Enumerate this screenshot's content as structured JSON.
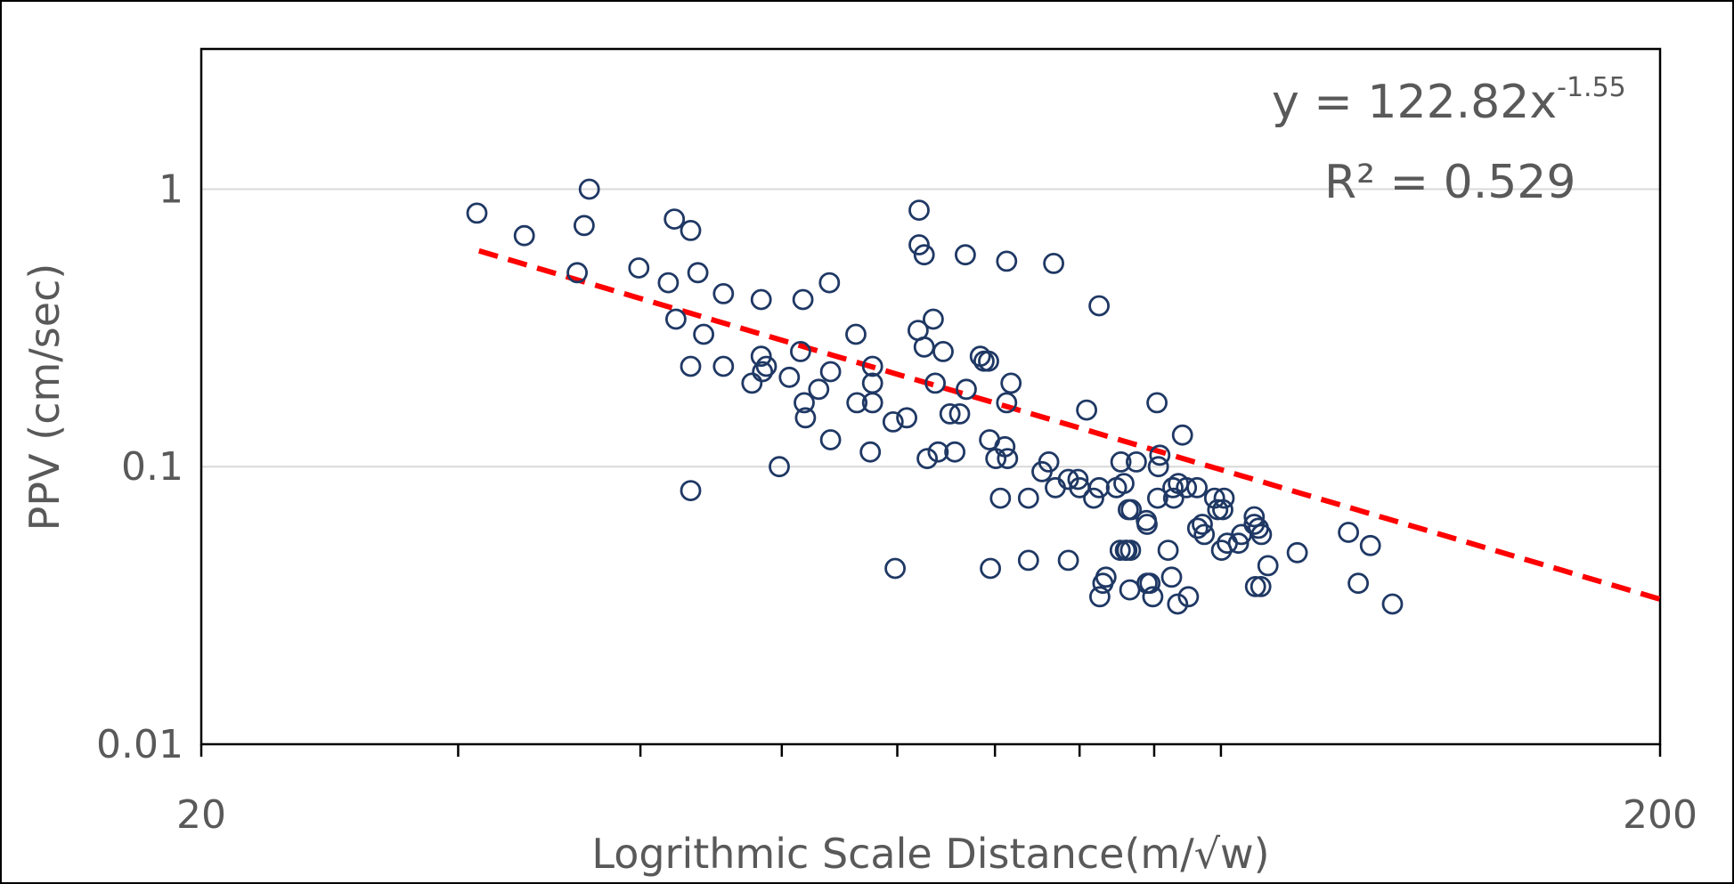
{
  "chart_data": {
    "type": "scatter",
    "xlabel": "Logrithmic Scale Distance(m/√w)",
    "ylabel": "PPV (cm/sec)",
    "x_scale": "log",
    "y_scale": "log",
    "xlim": [
      20,
      200
    ],
    "ylim": [
      0.01,
      3.2
    ],
    "x_tick_labels": [
      "20",
      "200"
    ],
    "y_ticks": [
      0.01,
      0.1,
      1
    ],
    "y_tick_labels": [
      "0.01",
      "0.1",
      "1"
    ],
    "grid": "horizontal",
    "marker_color": "#1f3864",
    "trendline": {
      "type": "power",
      "coefficient": 122.82,
      "exponent": -1.55,
      "x_range": [
        31,
        200
      ],
      "color": "#ff0000",
      "equation_base": "y = 122.82x",
      "equation_exponent": "-1.55",
      "r2_label": "R² = 0.529"
    },
    "points": [
      [
        30.9,
        0.82
      ],
      [
        33.3,
        0.68
      ],
      [
        36.2,
        0.5
      ],
      [
        36.6,
        0.74
      ],
      [
        36.9,
        1.0
      ],
      [
        39.9,
        0.52
      ],
      [
        41.8,
        0.46
      ],
      [
        42.2,
        0.78
      ],
      [
        42.3,
        0.34
      ],
      [
        43.3,
        0.71
      ],
      [
        43.3,
        0.23
      ],
      [
        43.3,
        0.082
      ],
      [
        43.8,
        0.5
      ],
      [
        44.2,
        0.3
      ],
      [
        45.6,
        0.42
      ],
      [
        45.6,
        0.23
      ],
      [
        47.7,
        0.2
      ],
      [
        48.4,
        0.4
      ],
      [
        48.4,
        0.25
      ],
      [
        48.5,
        0.22
      ],
      [
        48.8,
        0.23
      ],
      [
        49.8,
        0.1
      ],
      [
        50.6,
        0.21
      ],
      [
        51.5,
        0.26
      ],
      [
        51.7,
        0.4
      ],
      [
        51.8,
        0.17
      ],
      [
        51.9,
        0.15
      ],
      [
        53.0,
        0.19
      ],
      [
        53.9,
        0.46
      ],
      [
        54.0,
        0.22
      ],
      [
        54.0,
        0.125
      ],
      [
        56.2,
        0.3
      ],
      [
        56.3,
        0.17
      ],
      [
        57.5,
        0.113
      ],
      [
        57.7,
        0.23
      ],
      [
        57.7,
        0.2
      ],
      [
        57.7,
        0.17
      ],
      [
        59.6,
        0.145
      ],
      [
        59.8,
        0.043
      ],
      [
        60.9,
        0.15
      ],
      [
        62.0,
        0.31
      ],
      [
        62.1,
        0.84
      ],
      [
        62.1,
        0.63
      ],
      [
        62.6,
        0.58
      ],
      [
        62.6,
        0.27
      ],
      [
        62.9,
        0.107
      ],
      [
        63.5,
        0.34
      ],
      [
        63.7,
        0.2
      ],
      [
        64.0,
        0.113
      ],
      [
        64.5,
        0.26
      ],
      [
        65.2,
        0.155
      ],
      [
        65.7,
        0.113
      ],
      [
        66.2,
        0.155
      ],
      [
        66.8,
        0.58
      ],
      [
        66.9,
        0.19
      ],
      [
        68.4,
        0.25
      ],
      [
        68.8,
        0.24
      ],
      [
        69.3,
        0.24
      ],
      [
        69.4,
        0.125
      ],
      [
        69.5,
        0.043
      ],
      [
        70.1,
        0.107
      ],
      [
        70.6,
        0.077
      ],
      [
        71.1,
        0.118
      ],
      [
        71.3,
        0.55
      ],
      [
        71.3,
        0.17
      ],
      [
        71.4,
        0.107
      ],
      [
        71.8,
        0.2
      ],
      [
        73.8,
        0.077
      ],
      [
        73.8,
        0.046
      ],
      [
        75.4,
        0.096
      ],
      [
        76.2,
        0.104
      ],
      [
        76.8,
        0.54
      ],
      [
        77.0,
        0.084
      ],
      [
        78.6,
        0.046
      ],
      [
        78.6,
        0.09
      ],
      [
        79.8,
        0.09
      ],
      [
        80.0,
        0.084
      ],
      [
        80.9,
        0.16
      ],
      [
        81.8,
        0.077
      ],
      [
        82.5,
        0.084
      ],
      [
        82.5,
        0.38
      ],
      [
        82.6,
        0.034
      ],
      [
        83.0,
        0.038
      ],
      [
        83.4,
        0.04
      ],
      [
        84.8,
        0.084
      ],
      [
        85.3,
        0.05
      ],
      [
        85.4,
        0.104
      ],
      [
        85.8,
        0.087
      ],
      [
        86.0,
        0.05
      ],
      [
        86.2,
        0.05
      ],
      [
        86.4,
        0.07
      ],
      [
        86.6,
        0.036
      ],
      [
        86.7,
        0.05
      ],
      [
        86.8,
        0.07
      ],
      [
        87.5,
        0.104
      ],
      [
        88.9,
        0.064
      ],
      [
        89.0,
        0.062
      ],
      [
        89.0,
        0.038
      ],
      [
        89.4,
        0.038
      ],
      [
        89.8,
        0.034
      ],
      [
        90.4,
        0.17
      ],
      [
        90.5,
        0.077
      ],
      [
        90.6,
        0.1
      ],
      [
        90.8,
        0.11
      ],
      [
        92.0,
        0.05
      ],
      [
        92.5,
        0.04
      ],
      [
        92.7,
        0.084
      ],
      [
        92.8,
        0.077
      ],
      [
        93.4,
        0.032
      ],
      [
        93.5,
        0.087
      ],
      [
        94.1,
        0.13
      ],
      [
        94.7,
        0.084
      ],
      [
        95.0,
        0.034
      ],
      [
        96.3,
        0.084
      ],
      [
        96.4,
        0.06
      ],
      [
        97.1,
        0.062
      ],
      [
        97.4,
        0.057
      ],
      [
        99.0,
        0.077
      ],
      [
        99.5,
        0.07
      ],
      [
        100.1,
        0.05
      ],
      [
        100.3,
        0.07
      ],
      [
        100.5,
        0.077
      ],
      [
        101.0,
        0.053
      ],
      [
        102.8,
        0.053
      ],
      [
        103.3,
        0.057
      ],
      [
        105.4,
        0.066
      ],
      [
        105.4,
        0.062
      ],
      [
        105.6,
        0.037
      ],
      [
        106.1,
        0.06
      ],
      [
        106.5,
        0.037
      ],
      [
        106.6,
        0.057
      ],
      [
        107.7,
        0.044
      ],
      [
        112.8,
        0.049
      ],
      [
        122.3,
        0.058
      ],
      [
        124.2,
        0.038
      ],
      [
        126.6,
        0.052
      ],
      [
        131.1,
        0.032
      ]
    ]
  }
}
